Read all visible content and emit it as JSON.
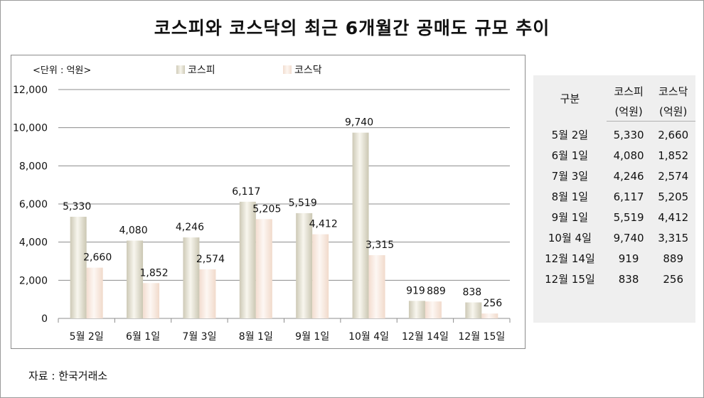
{
  "title": "코스피와 코스닥의 최근 6개월간 공매도 규모 추이",
  "unit_label": "<단위 : 억원>",
  "source": "자료 : 한국거래소",
  "colors": {
    "kospi": "#e9e6d8",
    "kosdaq": "#fbeee6",
    "grid": "#8c8c8c"
  },
  "chart_data": {
    "type": "bar",
    "categories": [
      "5월 2일",
      "6월 1일",
      "7월 3일",
      "8월 1일",
      "9월 1일",
      "10월 4일",
      "12월 14일",
      "12월 15일"
    ],
    "series": [
      {
        "name": "코스피",
        "values": [
          5330,
          4080,
          4246,
          6117,
          5519,
          9740,
          919,
          838
        ]
      },
      {
        "name": "코스닥",
        "values": [
          2660,
          1852,
          2574,
          5205,
          4412,
          3315,
          889,
          256
        ]
      }
    ],
    "data_labels": {
      "코스피": [
        "5,330",
        "4,080",
        "4,246",
        "6,117",
        "5,519",
        "9,740",
        "919",
        "838"
      ],
      "코스닥": [
        "2,660",
        "1,852",
        "2,574",
        "5,205",
        "4,412",
        "3,315",
        "889",
        "256"
      ]
    },
    "yticks": [
      "0",
      "2,000",
      "4,000",
      "6,000",
      "8,000",
      "10,000",
      "12,000"
    ],
    "ylim": [
      0,
      12000
    ],
    "grid": true,
    "legend": "top"
  },
  "table": {
    "header": {
      "col1": "구분",
      "col2_line1": "코스피",
      "col2_line2": "(억원)",
      "col3_line1": "코스닥",
      "col3_line2": "(억원)"
    },
    "rows": [
      [
        "5월 2일",
        "5,330",
        "2,660"
      ],
      [
        "6월 1일",
        "4,080",
        "1,852"
      ],
      [
        "7월 3일",
        "4,246",
        "2,574"
      ],
      [
        "8월 1일",
        "6,117",
        "5,205"
      ],
      [
        "9월 1일",
        "5,519",
        "4,412"
      ],
      [
        "10월 4일",
        "9,740",
        "3,315"
      ],
      [
        "12월 14일",
        "919",
        "889"
      ],
      [
        "12월 15일",
        "838",
        "256"
      ]
    ]
  }
}
